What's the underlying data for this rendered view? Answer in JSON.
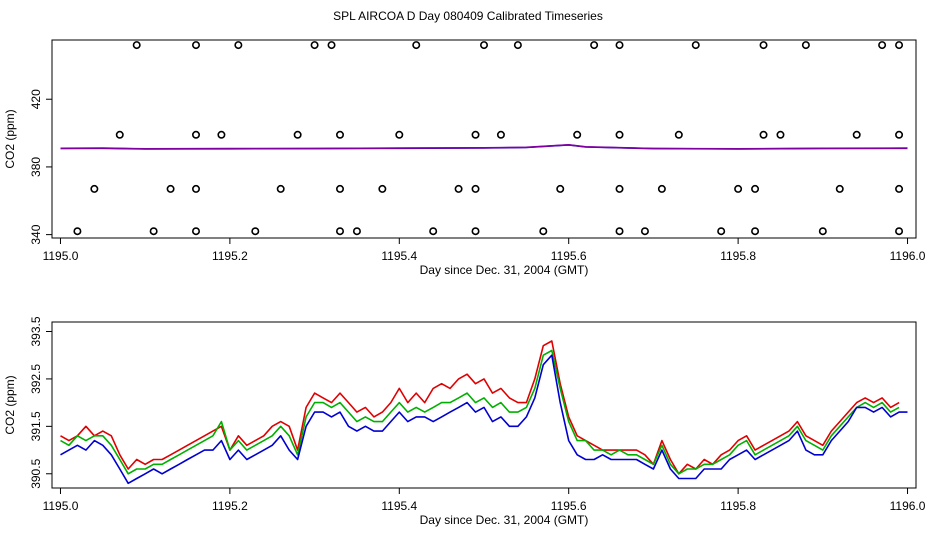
{
  "title": "SPL AIRCOA D  Day 080409  Calibrated Timeseries",
  "colors": {
    "red": "#e00000",
    "green": "#00b000",
    "blue": "#0000d0",
    "purple": "#8000a0",
    "frame": "#000000"
  },
  "chart_data": [
    {
      "type": "scatter",
      "xlabel": "Day since Dec. 31, 2004 (GMT)",
      "ylabel": "CO2 (ppm)",
      "xlim": [
        1194.99,
        1196.01
      ],
      "ylim": [
        338,
        455
      ],
      "xticks": [
        "1195.0",
        "1195.2",
        "1195.4",
        "1195.6",
        "1195.8",
        "1196.0"
      ],
      "yticks": [
        "340",
        "380",
        "420"
      ],
      "points": [
        [
          1195.02,
          342
        ],
        [
          1195.04,
          367
        ],
        [
          1195.07,
          399
        ],
        [
          1195.09,
          452
        ],
        [
          1195.11,
          342
        ],
        [
          1195.13,
          367
        ],
        [
          1195.16,
          342
        ],
        [
          1195.16,
          367
        ],
        [
          1195.16,
          399
        ],
        [
          1195.16,
          452
        ],
        [
          1195.19,
          399
        ],
        [
          1195.21,
          452
        ],
        [
          1195.23,
          342
        ],
        [
          1195.26,
          367
        ],
        [
          1195.28,
          399
        ],
        [
          1195.3,
          452
        ],
        [
          1195.32,
          452
        ],
        [
          1195.33,
          399
        ],
        [
          1195.33,
          367
        ],
        [
          1195.33,
          342
        ],
        [
          1195.35,
          342
        ],
        [
          1195.38,
          367
        ],
        [
          1195.4,
          399
        ],
        [
          1195.42,
          452
        ],
        [
          1195.44,
          342
        ],
        [
          1195.47,
          367
        ],
        [
          1195.49,
          342
        ],
        [
          1195.49,
          367
        ],
        [
          1195.49,
          399
        ],
        [
          1195.5,
          452
        ],
        [
          1195.52,
          399
        ],
        [
          1195.54,
          452
        ],
        [
          1195.57,
          342
        ],
        [
          1195.59,
          367
        ],
        [
          1195.61,
          399
        ],
        [
          1195.63,
          452
        ],
        [
          1195.66,
          452
        ],
        [
          1195.66,
          399
        ],
        [
          1195.66,
          367
        ],
        [
          1195.66,
          342
        ],
        [
          1195.69,
          342
        ],
        [
          1195.71,
          367
        ],
        [
          1195.73,
          399
        ],
        [
          1195.75,
          452
        ],
        [
          1195.78,
          342
        ],
        [
          1195.8,
          367
        ],
        [
          1195.82,
          342
        ],
        [
          1195.82,
          367
        ],
        [
          1195.83,
          399
        ],
        [
          1195.83,
          452
        ],
        [
          1195.85,
          399
        ],
        [
          1195.88,
          452
        ],
        [
          1195.9,
          342
        ],
        [
          1195.92,
          367
        ],
        [
          1195.94,
          399
        ],
        [
          1195.97,
          452
        ],
        [
          1195.99,
          452
        ],
        [
          1195.99,
          399
        ],
        [
          1195.99,
          367
        ],
        [
          1195.99,
          342
        ]
      ],
      "series": [
        {
          "color": "blue",
          "x": [
            1195.0,
            1195.05,
            1195.1,
            1195.2,
            1195.3,
            1195.4,
            1195.5,
            1195.55,
            1195.6,
            1195.62,
            1195.7,
            1195.8,
            1195.9,
            1196.0
          ],
          "values": [
            390.9,
            391.0,
            390.6,
            390.7,
            390.8,
            391.0,
            391.2,
            391.5,
            393.0,
            391.8,
            390.8,
            390.6,
            390.9,
            391.0
          ]
        },
        {
          "color": "purple",
          "x": [
            1195.0,
            1195.05,
            1195.1,
            1195.2,
            1195.3,
            1195.4,
            1195.5,
            1195.55,
            1195.6,
            1195.62,
            1195.7,
            1195.8,
            1195.9,
            1196.0
          ],
          "values": [
            391.0,
            391.1,
            390.7,
            390.8,
            390.9,
            391.1,
            391.3,
            391.6,
            393.1,
            391.9,
            390.9,
            390.7,
            391.0,
            391.1
          ]
        }
      ]
    },
    {
      "type": "line",
      "xlabel": "Day since Dec. 31, 2004 (GMT)",
      "ylabel": "CO2 (ppm)",
      "xlim": [
        1194.99,
        1196.01
      ],
      "ylim": [
        390.2,
        393.7
      ],
      "xticks": [
        "1195.0",
        "1195.2",
        "1195.4",
        "1195.6",
        "1195.8",
        "1196.0"
      ],
      "yticks": [
        "390.5",
        "391.5",
        "392.5",
        "393.5"
      ],
      "series": [
        {
          "color": "red",
          "x": [
            1195.0,
            1195.01,
            1195.02,
            1195.03,
            1195.04,
            1195.05,
            1195.06,
            1195.07,
            1195.08,
            1195.09,
            1195.1,
            1195.11,
            1195.12,
            1195.13,
            1195.14,
            1195.15,
            1195.16,
            1195.17,
            1195.18,
            1195.19,
            1195.2,
            1195.21,
            1195.22,
            1195.23,
            1195.24,
            1195.25,
            1195.26,
            1195.27,
            1195.28,
            1195.29,
            1195.3,
            1195.31,
            1195.32,
            1195.33,
            1195.34,
            1195.35,
            1195.36,
            1195.37,
            1195.38,
            1195.39,
            1195.4,
            1195.41,
            1195.42,
            1195.43,
            1195.44,
            1195.45,
            1195.46,
            1195.47,
            1195.48,
            1195.49,
            1195.5,
            1195.51,
            1195.52,
            1195.53,
            1195.54,
            1195.55,
            1195.56,
            1195.57,
            1195.58,
            1195.59,
            1195.6,
            1195.61,
            1195.62,
            1195.63,
            1195.64,
            1195.65,
            1195.66,
            1195.67,
            1195.68,
            1195.69,
            1195.7,
            1195.71,
            1195.72,
            1195.73,
            1195.74,
            1195.75,
            1195.76,
            1195.77,
            1195.78,
            1195.79,
            1195.8,
            1195.81,
            1195.82,
            1195.83,
            1195.84,
            1195.85,
            1195.86,
            1195.87,
            1195.88,
            1195.89,
            1195.9,
            1195.91,
            1195.92,
            1195.93,
            1195.94,
            1195.95,
            1195.96,
            1195.97,
            1195.98,
            1195.99
          ],
          "values": [
            391.3,
            391.2,
            391.3,
            391.5,
            391.3,
            391.4,
            391.3,
            390.9,
            390.6,
            390.8,
            390.7,
            390.8,
            390.8,
            390.9,
            391.0,
            391.1,
            391.2,
            391.3,
            391.4,
            391.5,
            391.0,
            391.3,
            391.1,
            391.2,
            391.3,
            391.5,
            391.6,
            391.5,
            391.0,
            391.9,
            392.2,
            392.1,
            392.0,
            392.2,
            392.0,
            391.8,
            391.9,
            391.7,
            391.8,
            392.0,
            392.3,
            392.0,
            392.2,
            392.0,
            392.3,
            392.4,
            392.3,
            392.5,
            392.6,
            392.4,
            392.5,
            392.2,
            392.3,
            392.1,
            392.0,
            392.0,
            392.5,
            393.2,
            393.3,
            392.4,
            391.7,
            391.3,
            391.2,
            391.1,
            391.0,
            391.0,
            391.0,
            391.0,
            391.0,
            390.9,
            390.7,
            391.2,
            390.8,
            390.5,
            390.7,
            390.6,
            390.8,
            390.7,
            390.9,
            391.0,
            391.2,
            391.3,
            391.0,
            391.1,
            391.2,
            391.3,
            391.4,
            391.6,
            391.3,
            391.2,
            391.1,
            391.4,
            391.6,
            391.8,
            392.0,
            392.1,
            392.0,
            392.1,
            391.9,
            392.0
          ]
        },
        {
          "color": "green",
          "x": [
            1195.0,
            1195.01,
            1195.02,
            1195.03,
            1195.04,
            1195.05,
            1195.06,
            1195.07,
            1195.08,
            1195.09,
            1195.1,
            1195.11,
            1195.12,
            1195.13,
            1195.14,
            1195.15,
            1195.16,
            1195.17,
            1195.18,
            1195.19,
            1195.2,
            1195.21,
            1195.22,
            1195.23,
            1195.24,
            1195.25,
            1195.26,
            1195.27,
            1195.28,
            1195.29,
            1195.3,
            1195.31,
            1195.32,
            1195.33,
            1195.34,
            1195.35,
            1195.36,
            1195.37,
            1195.38,
            1195.39,
            1195.4,
            1195.41,
            1195.42,
            1195.43,
            1195.44,
            1195.45,
            1195.46,
            1195.47,
            1195.48,
            1195.49,
            1195.5,
            1195.51,
            1195.52,
            1195.53,
            1195.54,
            1195.55,
            1195.56,
            1195.57,
            1195.58,
            1195.59,
            1195.6,
            1195.61,
            1195.62,
            1195.63,
            1195.64,
            1195.65,
            1195.66,
            1195.67,
            1195.68,
            1195.69,
            1195.7,
            1195.71,
            1195.72,
            1195.73,
            1195.74,
            1195.75,
            1195.76,
            1195.77,
            1195.78,
            1195.79,
            1195.8,
            1195.81,
            1195.82,
            1195.83,
            1195.84,
            1195.85,
            1195.86,
            1195.87,
            1195.88,
            1195.89,
            1195.9,
            1195.91,
            1195.92,
            1195.93,
            1195.94,
            1195.95,
            1195.96,
            1195.97,
            1195.98,
            1195.99
          ],
          "values": [
            391.2,
            391.1,
            391.3,
            391.2,
            391.3,
            391.3,
            391.1,
            390.8,
            390.5,
            390.6,
            390.6,
            390.7,
            390.7,
            390.8,
            390.9,
            391.0,
            391.1,
            391.2,
            391.3,
            391.6,
            391.0,
            391.2,
            391.0,
            391.1,
            391.2,
            391.3,
            391.5,
            391.3,
            390.9,
            391.7,
            392.0,
            392.0,
            391.9,
            392.0,
            391.8,
            391.6,
            391.7,
            391.6,
            391.6,
            391.8,
            392.0,
            391.8,
            391.9,
            391.8,
            391.9,
            392.0,
            392.0,
            392.1,
            392.2,
            392.0,
            392.1,
            391.9,
            392.0,
            391.8,
            391.8,
            391.9,
            392.3,
            393.0,
            393.1,
            392.3,
            391.6,
            391.2,
            391.2,
            391.0,
            391.0,
            390.9,
            391.0,
            390.9,
            390.9,
            390.8,
            390.7,
            391.1,
            390.7,
            390.5,
            390.6,
            390.6,
            390.7,
            390.7,
            390.8,
            390.9,
            391.1,
            391.2,
            390.9,
            391.0,
            391.1,
            391.2,
            391.3,
            391.5,
            391.2,
            391.1,
            391.0,
            391.3,
            391.5,
            391.7,
            391.9,
            392.0,
            391.9,
            392.0,
            391.8,
            391.9
          ]
        },
        {
          "color": "blue",
          "x": [
            1195.0,
            1195.01,
            1195.02,
            1195.03,
            1195.04,
            1195.05,
            1195.06,
            1195.07,
            1195.08,
            1195.09,
            1195.1,
            1195.11,
            1195.12,
            1195.13,
            1195.14,
            1195.15,
            1195.16,
            1195.17,
            1195.18,
            1195.19,
            1195.2,
            1195.21,
            1195.22,
            1195.23,
            1195.24,
            1195.25,
            1195.26,
            1195.27,
            1195.28,
            1195.29,
            1195.3,
            1195.31,
            1195.32,
            1195.33,
            1195.34,
            1195.35,
            1195.36,
            1195.37,
            1195.38,
            1195.39,
            1195.4,
            1195.41,
            1195.42,
            1195.43,
            1195.44,
            1195.45,
            1195.46,
            1195.47,
            1195.48,
            1195.49,
            1195.5,
            1195.51,
            1195.52,
            1195.53,
            1195.54,
            1195.55,
            1195.56,
            1195.57,
            1195.58,
            1195.59,
            1195.6,
            1195.61,
            1195.62,
            1195.63,
            1195.64,
            1195.65,
            1195.66,
            1195.67,
            1195.68,
            1195.69,
            1195.7,
            1195.71,
            1195.72,
            1195.73,
            1195.74,
            1195.75,
            1195.76,
            1195.77,
            1195.78,
            1195.79,
            1195.8,
            1195.81,
            1195.82,
            1195.83,
            1195.84,
            1195.85,
            1195.86,
            1195.87,
            1195.88,
            1195.89,
            1195.9,
            1195.91,
            1195.92,
            1195.93,
            1195.94,
            1195.95,
            1195.96,
            1195.97,
            1195.98,
            1195.99,
            1196.0
          ],
          "values": [
            390.9,
            391.0,
            391.1,
            391.0,
            391.2,
            391.1,
            390.9,
            390.6,
            390.3,
            390.4,
            390.5,
            390.6,
            390.5,
            390.6,
            390.7,
            390.8,
            390.9,
            391.0,
            391.0,
            391.2,
            390.8,
            391.0,
            390.8,
            390.9,
            391.0,
            391.1,
            391.3,
            391.0,
            390.8,
            391.5,
            391.8,
            391.8,
            391.7,
            391.8,
            391.5,
            391.4,
            391.5,
            391.4,
            391.4,
            391.6,
            391.8,
            391.6,
            391.7,
            391.7,
            391.6,
            391.7,
            391.8,
            391.9,
            392.0,
            391.8,
            391.9,
            391.6,
            391.7,
            391.5,
            391.5,
            391.7,
            392.1,
            392.8,
            393.0,
            392.0,
            391.2,
            390.9,
            390.8,
            390.8,
            390.9,
            390.8,
            390.8,
            390.8,
            390.8,
            390.7,
            390.6,
            391.0,
            390.6,
            390.4,
            390.4,
            390.4,
            390.6,
            390.6,
            390.6,
            390.8,
            390.9,
            391.0,
            390.8,
            390.9,
            391.0,
            391.1,
            391.2,
            391.4,
            391.0,
            390.9,
            390.9,
            391.2,
            391.4,
            391.6,
            391.9,
            391.9,
            391.8,
            391.9,
            391.7,
            391.8,
            391.8
          ]
        }
      ]
    }
  ]
}
